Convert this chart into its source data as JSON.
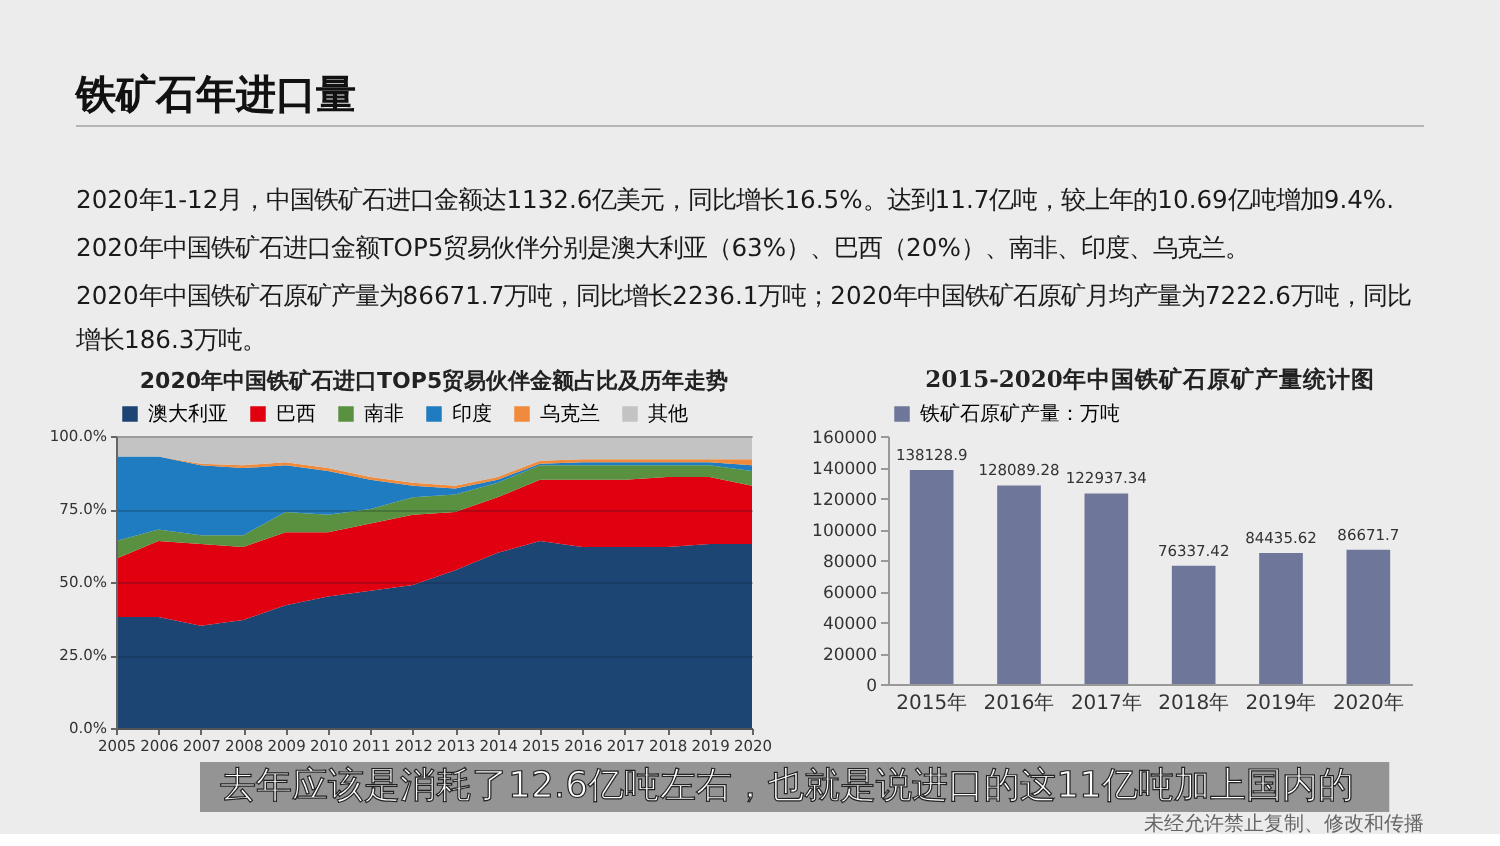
{
  "chart_data": [
    {
      "type": "other",
      "title": "铁矿石年进口量",
      "annotations": [
        "2020年1-12月，中国铁矿石进口金额达1132.6亿美元，同比增长16.5%。达到11.7亿吨，较上年的10.69亿吨增加9.4%.",
        "2020年中国铁矿石进口金额TOP5贸易伙伴分别是澳大利亚（63%）、巴西（20%）、南非、印度、乌克兰。",
        "2020年中国铁矿石原矿产量为86671.7万吨，同比增长2236.1万吨；2020年中国铁矿石原矿月均产量为7222.6万吨，同比增长186.3万吨。"
      ]
    },
    {
      "type": "area",
      "stacked": true,
      "title": "2020年中国铁矿石进口TOP5贸易伙伴金额占比及历年走势",
      "x": [
        2005,
        2006,
        2007,
        2008,
        2009,
        2010,
        2011,
        2012,
        2013,
        2014,
        2015,
        2016,
        2017,
        2018,
        2019,
        2020
      ],
      "series": [
        {
          "name": "澳大利亚",
          "color": "#1c4573",
          "values": [
            38,
            38,
            35,
            37,
            42,
            45,
            47,
            49,
            54,
            60,
            64,
            62,
            62,
            62,
            63,
            63
          ]
        },
        {
          "name": "巴西",
          "color": "#e00010",
          "values": [
            20,
            26,
            28,
            25,
            25,
            22,
            23,
            24,
            20,
            19,
            21,
            23,
            23,
            24,
            23,
            20
          ]
        },
        {
          "name": "南非",
          "color": "#5a9140",
          "values": [
            6,
            4,
            3,
            4,
            7,
            6,
            5,
            6,
            6,
            5,
            5,
            5,
            5,
            4,
            4,
            5
          ]
        },
        {
          "name": "印度",
          "color": "#1f7cc0",
          "values": [
            29,
            25,
            24,
            23,
            16,
            15,
            10,
            4,
            2,
            1,
            0.5,
            1,
            1,
            1,
            1,
            2
          ]
        },
        {
          "name": "乌克兰",
          "color": "#f08a3c",
          "values": [
            0,
            0,
            0.5,
            1,
            1,
            1,
            1,
            1,
            1,
            1,
            1,
            1,
            1,
            1,
            1,
            2
          ]
        },
        {
          "name": "其他",
          "color": "#c3c3c3",
          "values": [
            7,
            7,
            9.5,
            10,
            9,
            11,
            14,
            16,
            17,
            14,
            8.5,
            8,
            8,
            8,
            8,
            8
          ]
        }
      ],
      "xlim": [
        2005,
        2020
      ],
      "xticks": [
        2005,
        2006,
        2007,
        2008,
        2009,
        2010,
        2011,
        2012,
        2013,
        2014,
        2015,
        2016,
        2017,
        2018,
        2019,
        2020
      ],
      "ylim": [
        0,
        100
      ],
      "yticks": [
        {
          "value": 0,
          "label": "0.0%"
        },
        {
          "value": 25,
          "label": "25.0%"
        },
        {
          "value": 50,
          "label": "50.0%"
        },
        {
          "value": 75,
          "label": "75.0%"
        },
        {
          "value": 100,
          "label": "100.0%"
        }
      ],
      "grid": "y",
      "legend": "top"
    },
    {
      "type": "bar",
      "title": "2015-2020年中国铁矿石原矿产量统计图",
      "categories": [
        "2015年",
        "2016年",
        "2017年",
        "2018年",
        "2019年",
        "2020年"
      ],
      "series": [
        {
          "name": "铁矿石原矿产量：万吨",
          "color": "#6e7799",
          "values": [
            138128.9,
            128089.28,
            122937.34,
            76337.42,
            84435.62,
            86671.7
          ]
        }
      ],
      "ylim": [
        0,
        160000
      ],
      "yticks": [
        0,
        20000,
        40000,
        60000,
        80000,
        100000,
        120000,
        140000,
        160000
      ],
      "data_labels": true,
      "legend": "top"
    },
    {
      "type": "other",
      "annotations": [
        "去年应该是消耗了12.6亿吨左右，也就是说进口的这11亿吨加上国内的",
        "未经允许禁止复制、修改和传播"
      ]
    }
  ]
}
